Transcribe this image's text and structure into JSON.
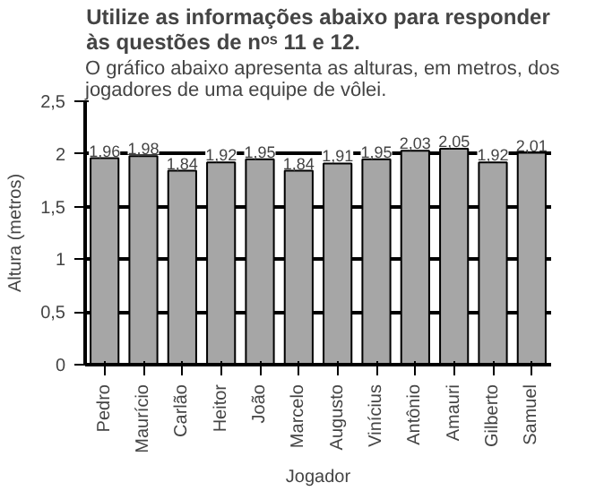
{
  "chart_data": {
    "type": "bar",
    "title": "Utilize as informações abaixo para responder às questões de nᵒˢ 11 e 12.",
    "subtitle": "O gráfico abaixo apresenta as alturas, em metros, dos jogadores de uma equipe de vôlei.",
    "xlabel": "Jogador",
    "ylabel": "Altura (metros)",
    "categories": [
      "Pedro",
      "Maurício",
      "Carlão",
      "Heitor",
      "João",
      "Marcelo",
      "Augusto",
      "Vinícius",
      "Antônio",
      "Amauri",
      "Gilberto",
      "Samuel"
    ],
    "values": [
      1.96,
      1.98,
      1.84,
      1.92,
      1.95,
      1.84,
      1.91,
      1.95,
      2.03,
      2.05,
      1.92,
      2.01
    ],
    "value_labels": [
      "1,96",
      "1,98",
      "1,84",
      "1,92",
      "1,95",
      "1,84",
      "1,91",
      "1,95",
      "2,03",
      "2,05",
      "1,92",
      "2,01"
    ],
    "color": "#a6a6a6",
    "ylim": [
      0,
      2.5
    ],
    "yticks": [
      0,
      {
        "value": 0.5,
        "label": "0,5"
      },
      1,
      {
        "value": 1.5,
        "label": "1,5"
      },
      2,
      {
        "value": 2.5,
        "label": "2,5"
      }
    ],
    "grid": "y"
  }
}
